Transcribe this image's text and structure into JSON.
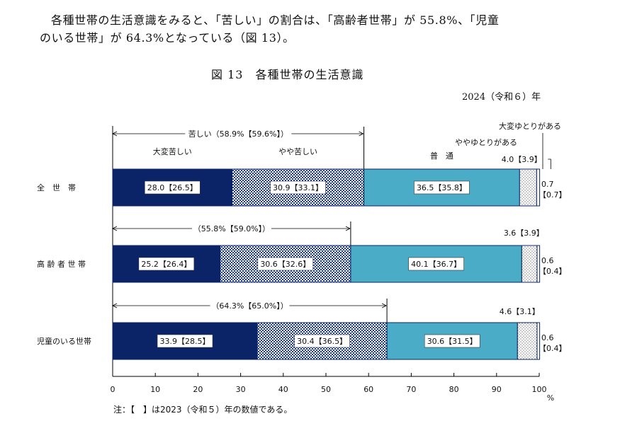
{
  "paragraph": {
    "line1": "各種世帯の生活意識をみると、「苦しい」の割合は、「高齢者世帯」が 55.8%、「児童",
    "line2": "のいる世帯」が 64.3%となっている（図 13）。"
  },
  "figure_title": "図 13　各種世帯の生活意識",
  "year_label": "2024（令和６）年",
  "note": "注：【　】は2023（令和５）年の数値である。",
  "colors": {
    "daihen_kurushii": "#0b2468",
    "yaya_kurushii_fg": "#1e3c8c",
    "futsu": "#4aacc6",
    "yaya_yutori": "#ffffff",
    "daihen_yutori": "#ffffff"
  },
  "chart_data": {
    "type": "bar",
    "stacked": true,
    "orientation": "horizontal",
    "categories": [
      "全　世　帯",
      "高 齢 者 世 帯",
      "児童のいる世帯"
    ],
    "series": [
      {
        "name": "大変苦しい",
        "values": [
          28.0,
          25.2,
          33.9
        ],
        "labels": [
          "28.0【26.5】",
          "25.2【26.4】",
          "33.9【28.5】"
        ]
      },
      {
        "name": "やや苦しい",
        "values": [
          30.9,
          30.6,
          30.4
        ],
        "labels": [
          "30.9【33.1】",
          "30.6【32.6】",
          "30.4【36.5】"
        ]
      },
      {
        "name": "普　通",
        "values": [
          36.5,
          40.1,
          30.6
        ],
        "labels": [
          "36.5【35.8】",
          "40.1【36.7】",
          "30.6【31.5】"
        ]
      },
      {
        "name": "ややゆとりがある",
        "values": [
          4.0,
          3.6,
          4.6
        ],
        "labels": [
          "4.0【3.9】",
          "3.6【3.9】",
          "4.6【3.1】"
        ]
      },
      {
        "name": "大変ゆとりがある",
        "values": [
          0.7,
          0.6,
          0.6
        ],
        "labels": [
          "0.7",
          "0.6",
          "0.6"
        ],
        "prev_labels": [
          "【0.7】",
          "【0.4】",
          "【0.4】"
        ]
      }
    ],
    "kurushii_annotations": [
      "苦しい（58.9%【59.6%】）",
      "（55.8%【59.0%】）",
      "（64.3%【65.0%】）"
    ],
    "kurushii_totals": [
      58.9,
      55.8,
      64.3
    ],
    "x_ticks": [
      "0",
      "10",
      "20",
      "30",
      "40",
      "50",
      "60",
      "70",
      "80",
      "90",
      "100"
    ],
    "x_unit": "%",
    "xlim": [
      0,
      100
    ]
  }
}
